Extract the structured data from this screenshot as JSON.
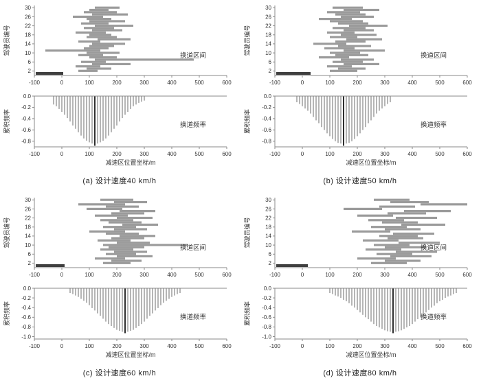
{
  "figure": {
    "colors": {
      "segment": "#9b9b9b",
      "segment_dark": "#3f3f3f",
      "freq_bar": "#b5b5b5",
      "mode_line": "#2e2e2e",
      "spine": "#8a8a8a",
      "tick_text": "#333333",
      "annotation_text": "#333333"
    },
    "x_axis": {
      "min": -100,
      "max": 600,
      "ticks": [
        -100,
        0,
        100,
        200,
        300,
        400,
        500,
        600
      ],
      "title": "减速区位置坐标/m"
    },
    "interval_y_axis": {
      "title": "驾驶员编号",
      "ticks": [
        2,
        6,
        10,
        14,
        18,
        22,
        26,
        30
      ],
      "min": 0,
      "max": 31
    },
    "frequency_y_axis": {
      "title": "累积频率"
    },
    "annotations": {
      "interval_label": "换道区间",
      "frequency_label": "换道频率"
    }
  },
  "chart_data": [
    {
      "id": "a",
      "caption": "(a) 设计速度40 km/h",
      "type": "interval+bar",
      "intervals": {
        "type": "gantt",
        "segments": [
          [
            -95,
            5
          ],
          [
            60,
            130
          ],
          [
            90,
            180
          ],
          [
            50,
            140
          ],
          [
            110,
            250
          ],
          [
            70,
            160
          ],
          [
            120,
            480
          ],
          [
            100,
            200
          ],
          [
            60,
            150
          ],
          [
            90,
            210
          ],
          [
            -60,
            140
          ],
          [
            80,
            170
          ],
          [
            100,
            190
          ],
          [
            110,
            230
          ],
          [
            60,
            140
          ],
          [
            130,
            250
          ],
          [
            90,
            200
          ],
          [
            100,
            180
          ],
          [
            50,
            160
          ],
          [
            110,
            220
          ],
          [
            80,
            190
          ],
          [
            120,
            260
          ],
          [
            70,
            170
          ],
          [
            100,
            230
          ],
          [
            90,
            180
          ],
          [
            40,
            150
          ],
          [
            110,
            240
          ],
          [
            80,
            200
          ],
          [
            100,
            170
          ],
          [
            120,
            210
          ]
        ]
      },
      "frequency": {
        "type": "bar",
        "x_start": -30,
        "x_step": 10,
        "values": [
          -0.15,
          -0.18,
          -0.23,
          -0.28,
          -0.33,
          -0.39,
          -0.45,
          -0.52,
          -0.58,
          -0.64,
          -0.7,
          -0.75,
          -0.79,
          -0.82,
          -0.84,
          -0.85,
          -0.84,
          -0.82,
          -0.79,
          -0.75,
          -0.7,
          -0.64,
          -0.58,
          -0.52,
          -0.45,
          -0.39,
          -0.33,
          -0.28,
          -0.23,
          -0.18,
          -0.15,
          -0.12,
          -0.1,
          -0.08
        ],
        "mode_x": 120,
        "ylim": [
          -0.9,
          0
        ],
        "yticks": [
          0.0,
          -0.2,
          -0.4,
          -0.6,
          -0.8
        ]
      }
    },
    {
      "id": "b",
      "caption": "(b) 设计速度50 km/h",
      "type": "interval+bar",
      "intervals": {
        "type": "gantt",
        "segments": [
          [
            -95,
            30
          ],
          [
            100,
            200
          ],
          [
            130,
            230
          ],
          [
            90,
            180
          ],
          [
            150,
            280
          ],
          [
            110,
            220
          ],
          [
            140,
            260
          ],
          [
            60,
            170
          ],
          [
            120,
            240
          ],
          [
            100,
            210
          ],
          [
            150,
            300
          ],
          [
            80,
            190
          ],
          [
            130,
            250
          ],
          [
            40,
            160
          ],
          [
            120,
            230
          ],
          [
            160,
            290
          ],
          [
            100,
            200
          ],
          [
            140,
            270
          ],
          [
            90,
            190
          ],
          [
            150,
            260
          ],
          [
            110,
            230
          ],
          [
            170,
            310
          ],
          [
            130,
            240
          ],
          [
            100,
            220
          ],
          [
            60,
            180
          ],
          [
            140,
            260
          ],
          [
            120,
            230
          ],
          [
            90,
            210
          ],
          [
            150,
            280
          ],
          [
            110,
            220
          ]
        ]
      },
      "frequency": {
        "type": "bar",
        "x_start": -20,
        "x_step": 10,
        "values": [
          -0.11,
          -0.14,
          -0.18,
          -0.22,
          -0.26,
          -0.31,
          -0.37,
          -0.43,
          -0.48,
          -0.55,
          -0.6,
          -0.66,
          -0.71,
          -0.76,
          -0.8,
          -0.83,
          -0.84,
          -0.85,
          -0.84,
          -0.83,
          -0.8,
          -0.76,
          -0.71,
          -0.66,
          -0.6,
          -0.55,
          -0.48,
          -0.43,
          -0.37,
          -0.31,
          -0.26,
          -0.22,
          -0.18,
          -0.14,
          -0.11
        ],
        "mode_x": 150,
        "ylim": [
          -0.9,
          0
        ],
        "yticks": [
          0.0,
          -0.2,
          -0.4,
          -0.6,
          -0.8
        ]
      }
    },
    {
      "id": "c",
      "caption": "(c) 设计速度60 km/h",
      "type": "interval+bar",
      "intervals": {
        "type": "gantt",
        "segments": [
          [
            -95,
            10
          ],
          [
            150,
            250
          ],
          [
            180,
            290
          ],
          [
            120,
            230
          ],
          [
            200,
            330
          ],
          [
            160,
            270
          ],
          [
            190,
            310
          ],
          [
            140,
            260
          ],
          [
            170,
            300
          ],
          [
            150,
            460
          ],
          [
            200,
            320
          ],
          [
            130,
            250
          ],
          [
            180,
            300
          ],
          [
            210,
            340
          ],
          [
            160,
            280
          ],
          [
            100,
            230
          ],
          [
            190,
            310
          ],
          [
            150,
            270
          ],
          [
            220,
            350
          ],
          [
            170,
            290
          ],
          [
            140,
            260
          ],
          [
            200,
            330
          ],
          [
            120,
            240
          ],
          [
            180,
            300
          ],
          [
            210,
            340
          ],
          [
            90,
            220
          ],
          [
            160,
            280
          ],
          [
            60,
            230
          ],
          [
            190,
            310
          ],
          [
            140,
            260
          ]
        ]
      },
      "frequency": {
        "type": "bar",
        "x_start": 30,
        "x_step": 10,
        "values": [
          -0.1,
          -0.12,
          -0.15,
          -0.18,
          -0.22,
          -0.26,
          -0.3,
          -0.35,
          -0.41,
          -0.46,
          -0.52,
          -0.57,
          -0.63,
          -0.69,
          -0.74,
          -0.78,
          -0.82,
          -0.86,
          -0.88,
          -0.9,
          -0.9,
          -0.9,
          -0.88,
          -0.86,
          -0.82,
          -0.78,
          -0.74,
          -0.69,
          -0.63,
          -0.57,
          -0.52,
          -0.46,
          -0.41,
          -0.35,
          -0.3,
          -0.26,
          -0.22,
          -0.18,
          -0.15,
          -0.12,
          -0.1
        ],
        "mode_x": 230,
        "ylim": [
          -1.05,
          0
        ],
        "yticks": [
          0.0,
          -0.2,
          -0.4,
          -0.6,
          -0.8,
          -1.0
        ]
      }
    },
    {
      "id": "d",
      "caption": "(d) 设计速度80 km/h",
      "type": "interval+bar",
      "intervals": {
        "type": "gantt",
        "segments": [
          [
            -95,
            20
          ],
          [
            250,
            380
          ],
          [
            300,
            430
          ],
          [
            200,
            340
          ],
          [
            320,
            470
          ],
          [
            270,
            400
          ],
          [
            340,
            490
          ],
          [
            230,
            360
          ],
          [
            300,
            450
          ],
          [
            260,
            390
          ],
          [
            350,
            500
          ],
          [
            220,
            350
          ],
          [
            310,
            440
          ],
          [
            280,
            420
          ],
          [
            330,
            480
          ],
          [
            180,
            320
          ],
          [
            300,
            430
          ],
          [
            250,
            380
          ],
          [
            360,
            520
          ],
          [
            290,
            420
          ],
          [
            240,
            370
          ],
          [
            340,
            490
          ],
          [
            200,
            330
          ],
          [
            310,
            450
          ],
          [
            370,
            540
          ],
          [
            150,
            290
          ],
          [
            280,
            410
          ],
          [
            430,
            600
          ],
          [
            320,
            460
          ],
          [
            260,
            390
          ]
        ]
      },
      "frequency": {
        "type": "bar",
        "x_start": 100,
        "x_step": 10,
        "values": [
          -0.1,
          -0.12,
          -0.15,
          -0.17,
          -0.2,
          -0.24,
          -0.27,
          -0.31,
          -0.36,
          -0.4,
          -0.45,
          -0.5,
          -0.55,
          -0.6,
          -0.64,
          -0.69,
          -0.74,
          -0.78,
          -0.81,
          -0.84,
          -0.87,
          -0.89,
          -0.9,
          -0.9,
          -0.9,
          -0.89,
          -0.87,
          -0.84,
          -0.81,
          -0.78,
          -0.74,
          -0.69,
          -0.64,
          -0.6,
          -0.55,
          -0.5,
          -0.45,
          -0.4,
          -0.36,
          -0.31,
          -0.27,
          -0.24,
          -0.2,
          -0.17,
          -0.15,
          -0.12,
          -0.1
        ],
        "mode_x": 330,
        "ylim": [
          -1.05,
          0
        ],
        "yticks": [
          0.0,
          -0.2,
          -0.4,
          -0.6,
          -0.8,
          -1.0
        ]
      }
    }
  ]
}
